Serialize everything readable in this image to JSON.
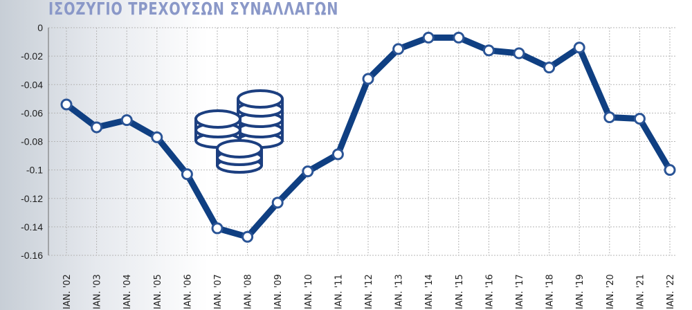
{
  "chart_data": {
    "type": "line",
    "title": "ΙΣΟΖΥΓΙΟ ΤΡΕΧΟΥΣΩΝ ΣΥΝΑΛΛΑΓΩΝ",
    "xlabel": "",
    "ylabel": "",
    "categories": [
      "IAN. '02",
      "IAN. '03",
      "IAN. '04",
      "IAN. '05",
      "IAN. '06",
      "IAN. '07",
      "IAN. '08",
      "IAN. '09",
      "IAN. '10",
      "IAN. '11",
      "IAN. '12",
      "IAN. '13",
      "IAN. '14",
      "IAN. '15",
      "IAN. '16",
      "IAN. '17",
      "IAN. '18",
      "IAN. '19",
      "IAN. '20",
      "IAN. '21",
      "IAN. '22"
    ],
    "series": [
      {
        "values": [
          -0.054,
          -0.07,
          -0.065,
          -0.077,
          -0.103,
          -0.141,
          -0.147,
          -0.123,
          -0.101,
          -0.089,
          -0.036,
          -0.015,
          -0.007,
          -0.007,
          -0.016,
          -0.018,
          -0.028,
          -0.014,
          -0.063,
          -0.064,
          -0.1
        ]
      }
    ],
    "ylim": [
      -0.16,
      0
    ],
    "yticks": [
      "0",
      "-0.02",
      "-0.04",
      "-0.06",
      "-0.08",
      "-0.1",
      "-0.12",
      "-0.14",
      "-0.16"
    ],
    "grid": "dashed",
    "legend": "none",
    "colors": {
      "line": "#0f3f82",
      "marker_fill": "#ffffff",
      "marker_stroke": "#2a5496",
      "title": "#8a98c8",
      "grid": "#b5b5b5"
    },
    "decoration_icon": "coin-stacks-icon"
  }
}
